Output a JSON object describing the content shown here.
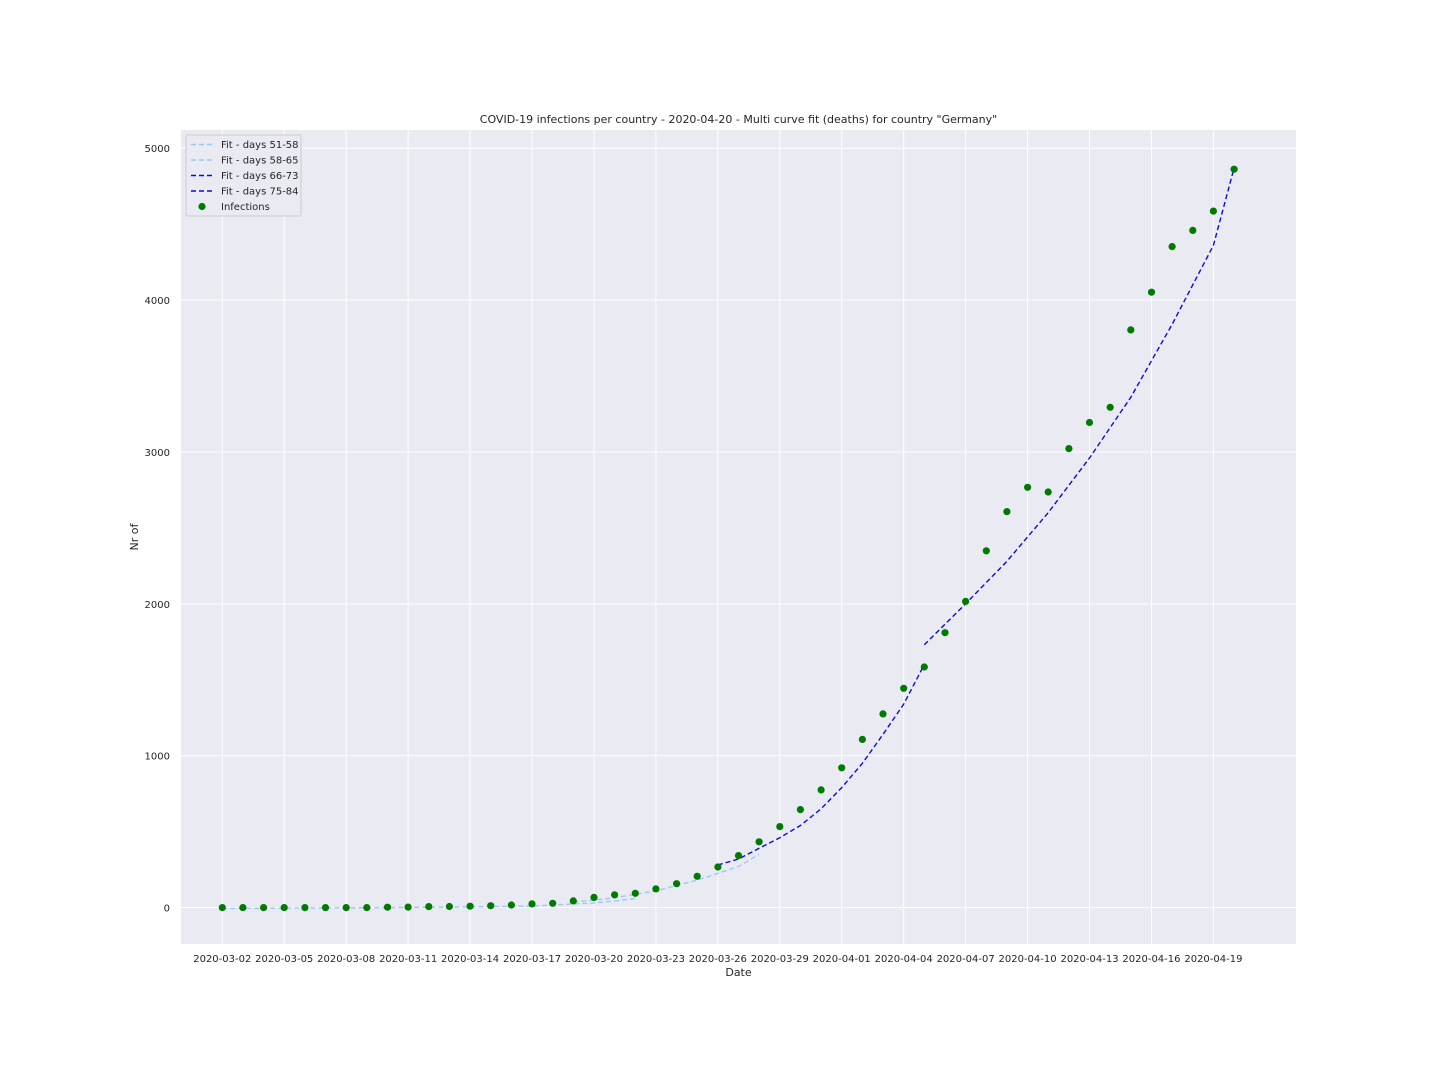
{
  "chart_data": {
    "type": "line",
    "title": "COVID-19 infections per country - 2020-04-20 - Multi curve fit (deaths) for country \"Germany\"",
    "xlabel": "Date",
    "ylabel": "Nr of",
    "x_axis": "date",
    "xlim": [
      "2020-02-29",
      "2020-04-23"
    ],
    "ylim": [
      -240,
      5120
    ],
    "x_ticks": [
      "2020-03-02",
      "2020-03-05",
      "2020-03-08",
      "2020-03-11",
      "2020-03-14",
      "2020-03-17",
      "2020-03-20",
      "2020-03-23",
      "2020-03-26",
      "2020-03-29",
      "2020-04-01",
      "2020-04-04",
      "2020-04-07",
      "2020-04-10",
      "2020-04-13",
      "2020-04-16",
      "2020-04-19"
    ],
    "y_ticks": [
      0,
      1000,
      2000,
      3000,
      4000,
      5000
    ],
    "grid": true,
    "legend_position": "top-left",
    "background": "#eaeaf2",
    "series": [
      {
        "name": "Fit - days 51-58",
        "kind": "line",
        "style": "dashed",
        "color": "#9cc9f2",
        "points": [
          [
            "2020-03-02",
            -6
          ],
          [
            "2020-03-06",
            -3
          ],
          [
            "2020-03-10",
            0
          ],
          [
            "2020-03-14",
            4
          ],
          [
            "2020-03-17",
            10
          ],
          [
            "2020-03-20",
            30
          ],
          [
            "2020-03-22",
            58
          ]
        ]
      },
      {
        "name": "Fit - days 58-65",
        "kind": "line",
        "style": "dashed",
        "color": "#9cc9f2",
        "points": [
          [
            "2020-03-19",
            35
          ],
          [
            "2020-03-21",
            64
          ],
          [
            "2020-03-23",
            110
          ],
          [
            "2020-03-25",
            180
          ],
          [
            "2020-03-27",
            270
          ],
          [
            "2020-03-28",
            350
          ]
        ]
      },
      {
        "name": "Fit - days 66-73",
        "kind": "line",
        "style": "dashed",
        "color": "#0b0bd9",
        "points": [
          [
            "2020-03-26",
            280
          ],
          [
            "2020-03-27",
            320
          ],
          [
            "2020-03-28",
            390
          ],
          [
            "2020-03-29",
            460
          ],
          [
            "2020-03-30",
            540
          ],
          [
            "2020-03-31",
            650
          ],
          [
            "2020-04-01",
            790
          ],
          [
            "2020-04-02",
            950
          ],
          [
            "2020-04-03",
            1140
          ],
          [
            "2020-04-04",
            1340
          ],
          [
            "2020-04-05",
            1600
          ]
        ]
      },
      {
        "name": "Fit - days 75-84",
        "kind": "line",
        "style": "dashed",
        "color": "#0b0bd9",
        "points": [
          [
            "2020-04-05",
            1730
          ],
          [
            "2020-04-07",
            2000
          ],
          [
            "2020-04-09",
            2280
          ],
          [
            "2020-04-11",
            2600
          ],
          [
            "2020-04-13",
            2960
          ],
          [
            "2020-04-15",
            3360
          ],
          [
            "2020-04-17",
            3840
          ],
          [
            "2020-04-19",
            4360
          ],
          [
            "2020-04-20",
            4870
          ]
        ]
      },
      {
        "name": "Infections",
        "kind": "scatter",
        "color": "#007a00",
        "points": [
          [
            "2020-03-02",
            0
          ],
          [
            "2020-03-03",
            0
          ],
          [
            "2020-03-04",
            0
          ],
          [
            "2020-03-05",
            0
          ],
          [
            "2020-03-06",
            0
          ],
          [
            "2020-03-07",
            0
          ],
          [
            "2020-03-08",
            0
          ],
          [
            "2020-03-09",
            0
          ],
          [
            "2020-03-10",
            2
          ],
          [
            "2020-03-11",
            3
          ],
          [
            "2020-03-12",
            6
          ],
          [
            "2020-03-13",
            7
          ],
          [
            "2020-03-14",
            9
          ],
          [
            "2020-03-15",
            12
          ],
          [
            "2020-03-16",
            17
          ],
          [
            "2020-03-17",
            24
          ],
          [
            "2020-03-18",
            28
          ],
          [
            "2020-03-19",
            44
          ],
          [
            "2020-03-20",
            67
          ],
          [
            "2020-03-21",
            84
          ],
          [
            "2020-03-22",
            94
          ],
          [
            "2020-03-23",
            123
          ],
          [
            "2020-03-24",
            157
          ],
          [
            "2020-03-25",
            206
          ],
          [
            "2020-03-26",
            267
          ],
          [
            "2020-03-27",
            342
          ],
          [
            "2020-03-28",
            433
          ],
          [
            "2020-03-29",
            533
          ],
          [
            "2020-03-30",
            645
          ],
          [
            "2020-03-31",
            775
          ],
          [
            "2020-04-01",
            920
          ],
          [
            "2020-04-02",
            1107
          ],
          [
            "2020-04-03",
            1275
          ],
          [
            "2020-04-04",
            1444
          ],
          [
            "2020-04-05",
            1584
          ],
          [
            "2020-04-06",
            1810
          ],
          [
            "2020-04-07",
            2016
          ],
          [
            "2020-04-08",
            2349
          ],
          [
            "2020-04-09",
            2607
          ],
          [
            "2020-04-10",
            2767
          ],
          [
            "2020-04-11",
            2736
          ],
          [
            "2020-04-12",
            3022
          ],
          [
            "2020-04-13",
            3194
          ],
          [
            "2020-04-14",
            3294
          ],
          [
            "2020-04-15",
            3804
          ],
          [
            "2020-04-16",
            4052
          ],
          [
            "2020-04-17",
            4352
          ],
          [
            "2020-04-18",
            4459
          ],
          [
            "2020-04-19",
            4586
          ],
          [
            "2020-04-20",
            4862
          ]
        ]
      }
    ]
  }
}
